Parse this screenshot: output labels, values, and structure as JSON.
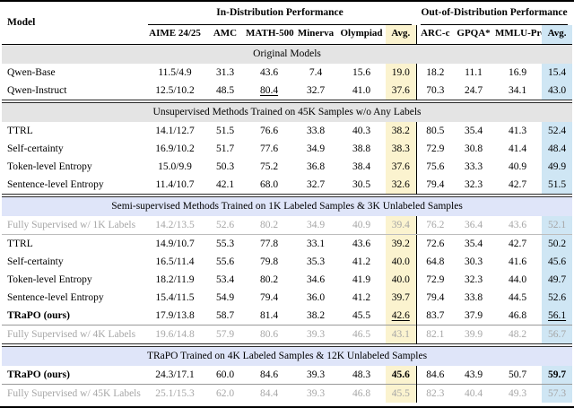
{
  "colors": {
    "avg_in_dist_bg": "#fbf3cf",
    "avg_ood_bg": "#cfe6f4",
    "section_gray_bg": "#e4e4e4",
    "section_blue_bg": "#dfe5f9",
    "muted_text": "#a6a6a6",
    "rule_color": "#000000"
  },
  "table": {
    "group_headers": [
      {
        "label": "Model"
      },
      {
        "label": "In-Distribution Performance",
        "span": 6
      },
      {
        "label": "Out-of-Distribution Performance",
        "span": 4
      }
    ],
    "columns": [
      "AIME 24/25",
      "AMC",
      "MATH-500",
      "Minerva",
      "Olympiad",
      "Avg.",
      "ARC-c",
      "GPQA*",
      "MMLU-Pro",
      "Avg."
    ],
    "sections": [
      {
        "title": "Original Models",
        "header_bg": "section_gray_bg",
        "rows": [
          {
            "model": "Qwen-Base",
            "values": [
              "11.5/4.9",
              "31.3",
              "43.6",
              "7.4",
              "15.6",
              "19.0",
              "18.2",
              "11.1",
              "16.9",
              "15.4"
            ]
          },
          {
            "model": "Qwen-Instruct",
            "values": [
              "12.5/10.2",
              "48.5",
              "80.4",
              "32.7",
              "41.0",
              "37.6",
              "70.3",
              "24.7",
              "34.1",
              "43.0"
            ],
            "underline_cols": [
              2
            ]
          }
        ]
      },
      {
        "title": "Unsupervised Methods Trained on 45K Samples w/o Any Labels",
        "header_bg": "section_gray_bg",
        "rows": [
          {
            "model": "TTRL",
            "values": [
              "14.1/12.7",
              "51.5",
              "76.6",
              "33.8",
              "40.3",
              "38.2",
              "80.5",
              "35.4",
              "41.3",
              "52.4"
            ]
          },
          {
            "model": "Self-certainty",
            "values": [
              "16.9/10.2",
              "51.7",
              "77.6",
              "34.9",
              "38.8",
              "38.3",
              "72.9",
              "30.8",
              "41.4",
              "48.4"
            ]
          },
          {
            "model": "Token-level Entropy",
            "values": [
              "15.0/9.9",
              "50.3",
              "75.2",
              "36.8",
              "38.4",
              "37.6",
              "75.6",
              "33.3",
              "40.9",
              "49.9"
            ]
          },
          {
            "model": "Sentence-level Entropy",
            "values": [
              "11.4/10.7",
              "42.1",
              "68.0",
              "32.7",
              "30.5",
              "32.6",
              "79.4",
              "32.3",
              "42.7",
              "51.5"
            ]
          }
        ]
      },
      {
        "title": "Semi-supervised Methods Trained on 1K Labeled Samples & 3K Unlabeled Samples",
        "header_bg": "section_blue_bg",
        "rows": [
          {
            "model": "Fully Supervised w/ 1K Labels",
            "muted": true,
            "rule_below": true,
            "values": [
              "14.2/13.5",
              "52.6",
              "80.2",
              "34.9",
              "40.9",
              "39.4",
              "76.2",
              "36.4",
              "43.6",
              "52.1"
            ]
          },
          {
            "model": "TTRL",
            "values": [
              "14.9/10.7",
              "55.3",
              "77.8",
              "33.1",
              "43.6",
              "39.2",
              "72.6",
              "35.4",
              "42.7",
              "50.2"
            ]
          },
          {
            "model": "Self-certainty",
            "values": [
              "16.5/11.4",
              "55.6",
              "79.8",
              "35.3",
              "41.2",
              "40.0",
              "64.8",
              "30.3",
              "41.6",
              "45.6"
            ]
          },
          {
            "model": "Token-level Entropy",
            "values": [
              "18.2/11.9",
              "53.4",
              "80.2",
              "34.6",
              "41.9",
              "40.0",
              "72.9",
              "32.3",
              "44.0",
              "49.7"
            ]
          },
          {
            "model": "Sentence-level Entropy",
            "values": [
              "15.4/11.5",
              "54.9",
              "79.4",
              "36.0",
              "41.2",
              "39.7",
              "79.4",
              "33.8",
              "44.5",
              "52.6"
            ]
          },
          {
            "model": "TRaPO (ours)",
            "bold_model": true,
            "values": [
              "17.9/13.8",
              "58.7",
              "81.4",
              "38.2",
              "45.5",
              "42.6",
              "83.7",
              "37.9",
              "46.8",
              "56.1"
            ],
            "underline_cols": [
              5,
              9
            ]
          },
          {
            "model": "Fully Supervised w/ 4K Labels",
            "muted": true,
            "rule_above": true,
            "values": [
              "19.6/14.8",
              "57.9",
              "80.6",
              "39.3",
              "46.5",
              "43.1",
              "82.1",
              "39.9",
              "48.2",
              "56.7"
            ]
          }
        ]
      },
      {
        "title": "TRaPO Trained on 4K Labeled Samples & 12K Unlabeled Samples",
        "header_bg": "section_blue_bg",
        "rows": [
          {
            "model": "TRaPO (ours)",
            "bold_model": true,
            "values": [
              "24.3/17.1",
              "60.0",
              "84.6",
              "39.3",
              "48.3",
              "45.6",
              "84.6",
              "43.9",
              "50.7",
              "59.7"
            ],
            "bold_cols": [
              5,
              9
            ]
          },
          {
            "model": "Fully Supervised w/ 45K Labels",
            "muted": true,
            "rule_above": true,
            "values": [
              "25.1/15.3",
              "62.0",
              "84.4",
              "39.3",
              "46.8",
              "45.5",
              "82.3",
              "40.4",
              "49.3",
              "57.3"
            ]
          }
        ]
      }
    ]
  }
}
